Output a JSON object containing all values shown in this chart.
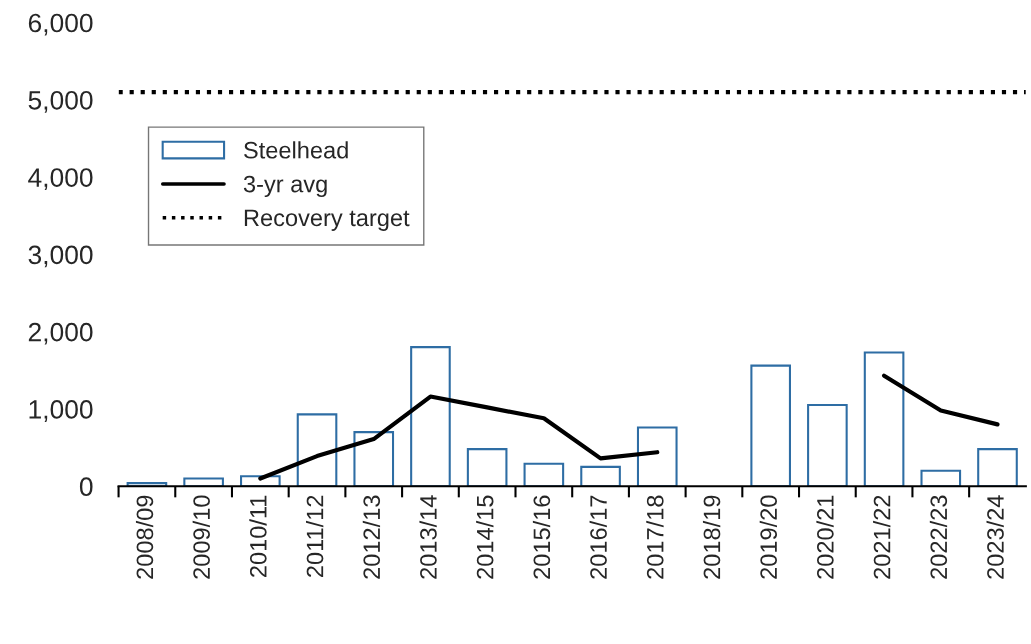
{
  "chart_data": {
    "type": "bar",
    "categories": [
      "2008/09",
      "2009/10",
      "2010/11",
      "2011/12",
      "2012/13",
      "2013/14",
      "2014/15",
      "2015/16",
      "2016/17",
      "2017/18",
      "2018/19",
      "2019/20",
      "2020/21",
      "2021/22",
      "2022/23",
      "2023/24"
    ],
    "series": [
      {
        "name": "Steelhead",
        "color": "#2e6da4",
        "values": [
          40,
          100,
          130,
          930,
          700,
          1800,
          480,
          290,
          250,
          760,
          null,
          1560,
          1050,
          1730,
          200,
          480
        ]
      },
      {
        "name": "3-yr avg",
        "type": "line",
        "color": "#000000",
        "line_style": "solid",
        "values": [
          null,
          null,
          100,
          390,
          610,
          1160,
          1020,
          880,
          360,
          440,
          null,
          null,
          null,
          1430,
          980,
          800
        ]
      }
    ],
    "ref_lines": [
      {
        "axis": "y",
        "value": 5100,
        "label": "Recovery target",
        "color": "#000000",
        "line_style": "dotted"
      }
    ],
    "ylim": [
      0,
      6000
    ],
    "yticks": [
      {
        "value": 0,
        "label": "0"
      },
      {
        "value": 1000,
        "label": "1,000"
      },
      {
        "value": 2000,
        "label": "2,000"
      },
      {
        "value": 3000,
        "label": "3,000"
      },
      {
        "value": 4000,
        "label": "4,000"
      },
      {
        "value": 5000,
        "label": "5,000"
      },
      {
        "value": 6000,
        "label": "6,000"
      }
    ],
    "grid": false,
    "legend": "top left"
  }
}
